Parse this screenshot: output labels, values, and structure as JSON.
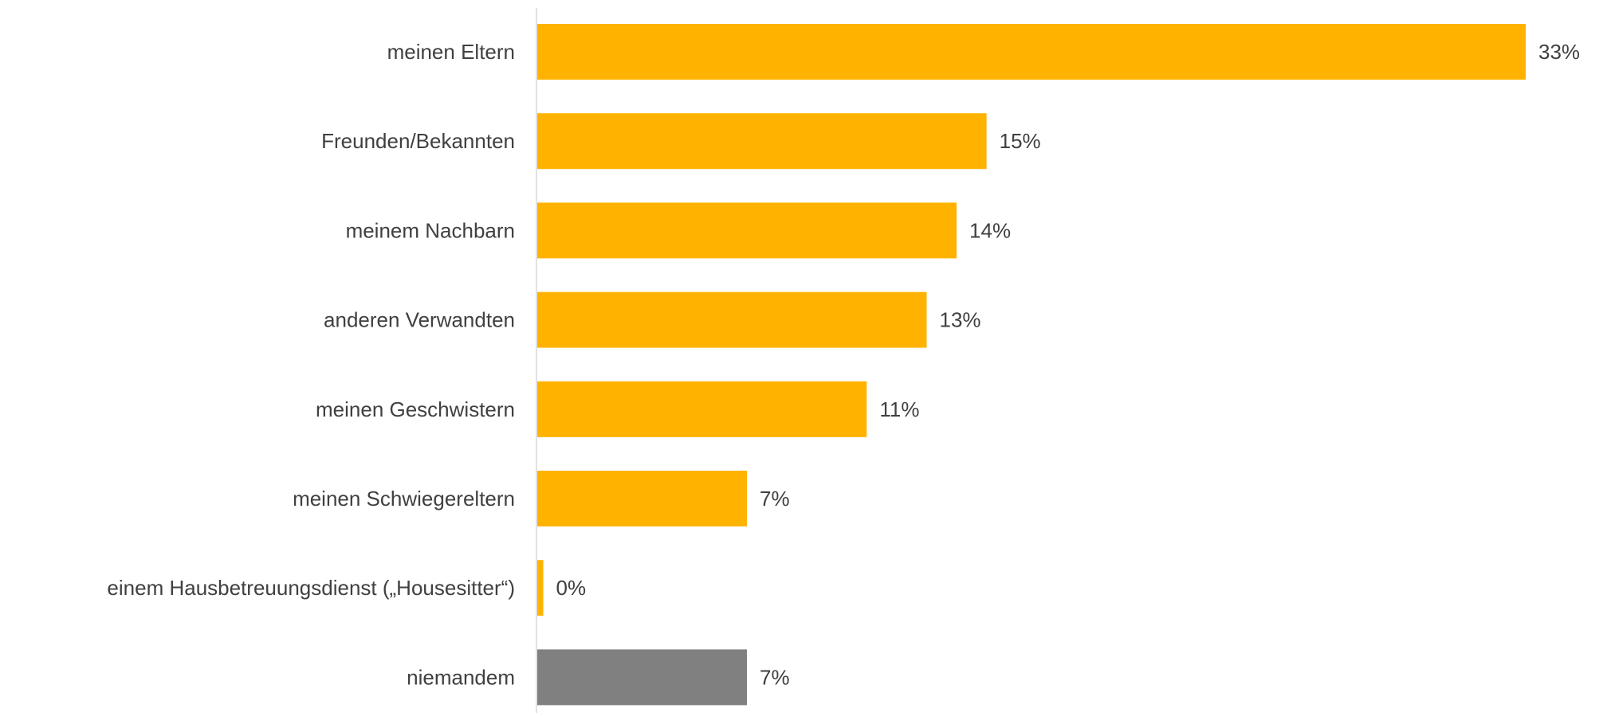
{
  "chart_data": {
    "type": "bar",
    "orientation": "horizontal",
    "categories": [
      "meinen Eltern",
      "Freunden/Bekannten",
      "meinem Nachbarn",
      "anderen Verwandten",
      "meinen Geschwistern",
      "meinen Schwiegereltern",
      "einem Hausbetreuungsdienst („Housesitter“)",
      "niemandem"
    ],
    "values": [
      33,
      15,
      14,
      13,
      11,
      7,
      0.2,
      7
    ],
    "value_labels": [
      "33%",
      "15%",
      "14%",
      "13%",
      "11%",
      "7%",
      "0%",
      "7%"
    ],
    "colors": [
      "#FFB300",
      "#FFB300",
      "#FFB300",
      "#FFB300",
      "#FFB300",
      "#FFB300",
      "#FFB300",
      "#808080"
    ],
    "axis_color": "#D9D9D9",
    "xlim": [
      0,
      33
    ],
    "grid": false,
    "legend": "none"
  }
}
